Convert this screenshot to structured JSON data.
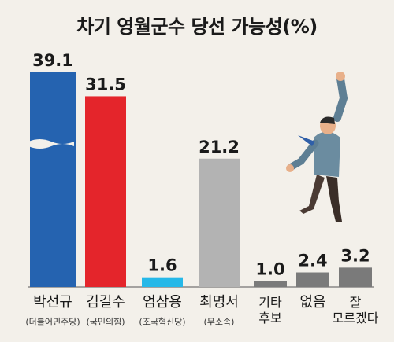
{
  "chart_data": {
    "type": "bar",
    "title": "차기 영월군수 당선 가능성(%)",
    "categories": [
      {
        "name": "박선규",
        "sub": "(더불어민주당)"
      },
      {
        "name": "김길수",
        "sub": "(국민의힘)"
      },
      {
        "name": "엄삼용",
        "sub": "(조국혁신당)"
      },
      {
        "name": "최명서",
        "sub": "(무소속)"
      },
      {
        "name": "기타\n후보",
        "sub": ""
      },
      {
        "name": "없음",
        "sub": ""
      },
      {
        "name": "잘\n모르겠다",
        "sub": ""
      }
    ],
    "values": [
      39.1,
      31.5,
      1.6,
      21.2,
      1.0,
      2.4,
      3.2
    ],
    "value_labels": [
      "39.1",
      "31.5",
      "1.6",
      "21.2",
      "1.0",
      "2.4",
      "3.2"
    ],
    "colors": [
      "#2563b0",
      "#e4252b",
      "#26b8e8",
      "#b3b3b3",
      "#7a7a7a",
      "#7a7a7a",
      "#7a7a7a"
    ],
    "axis_break_on": "박선규",
    "grid": false,
    "legend": "none"
  }
}
